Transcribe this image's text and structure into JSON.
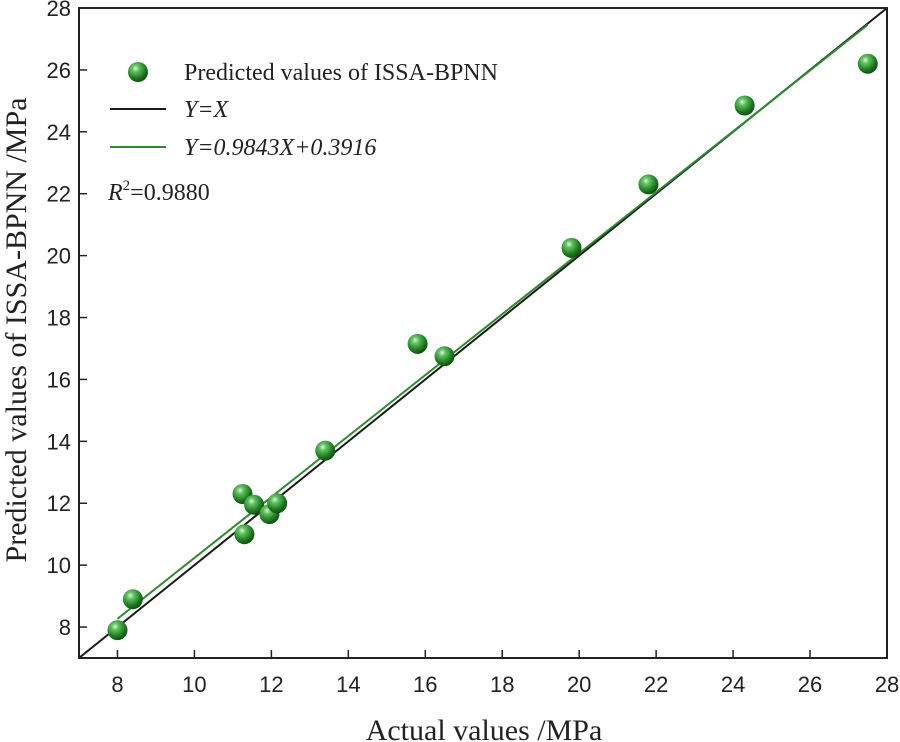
{
  "chart_data": {
    "type": "scatter",
    "title": "",
    "xlabel": "Actual values /MPa",
    "ylabel": "Predicted values of ISSA-BPNN /MPa",
    "xlim": [
      7,
      28
    ],
    "ylim": [
      7,
      28
    ],
    "xticks": [
      8,
      10,
      12,
      14,
      16,
      18,
      20,
      22,
      24,
      26,
      28
    ],
    "yticks": [
      8,
      10,
      12,
      14,
      16,
      18,
      20,
      22,
      24,
      26,
      28
    ],
    "grid": false,
    "legend_position": "top-left",
    "series": [
      {
        "name": "Predicted values of ISSA-BPNN",
        "kind": "points",
        "color": "#2e8b2e",
        "points": [
          {
            "x": 8.0,
            "y": 7.9
          },
          {
            "x": 8.4,
            "y": 8.9
          },
          {
            "x": 11.25,
            "y": 12.3
          },
          {
            "x": 11.3,
            "y": 11.0
          },
          {
            "x": 11.55,
            "y": 11.95
          },
          {
            "x": 11.95,
            "y": 11.65
          },
          {
            "x": 12.15,
            "y": 12.0
          },
          {
            "x": 13.4,
            "y": 13.7
          },
          {
            "x": 15.8,
            "y": 17.15
          },
          {
            "x": 16.5,
            "y": 16.75
          },
          {
            "x": 19.8,
            "y": 20.25
          },
          {
            "x": 21.8,
            "y": 22.3
          },
          {
            "x": 24.3,
            "y": 24.85
          },
          {
            "x": 27.5,
            "y": 26.2
          }
        ]
      },
      {
        "name": "Y=X",
        "kind": "line",
        "color": "#1a1a1a",
        "slope": 1,
        "intercept": 0,
        "x_range": [
          7,
          28
        ]
      },
      {
        "name": "Y=0.9843X+0.3916",
        "kind": "line",
        "color": "#2e8b2e",
        "slope": 0.9843,
        "intercept": 0.3916,
        "x_range": [
          8,
          27.5
        ]
      }
    ],
    "annotations": [
      {
        "r2_prefix": "R",
        "r2_sup": "2",
        "r2_value": "=0.9880"
      }
    ]
  }
}
